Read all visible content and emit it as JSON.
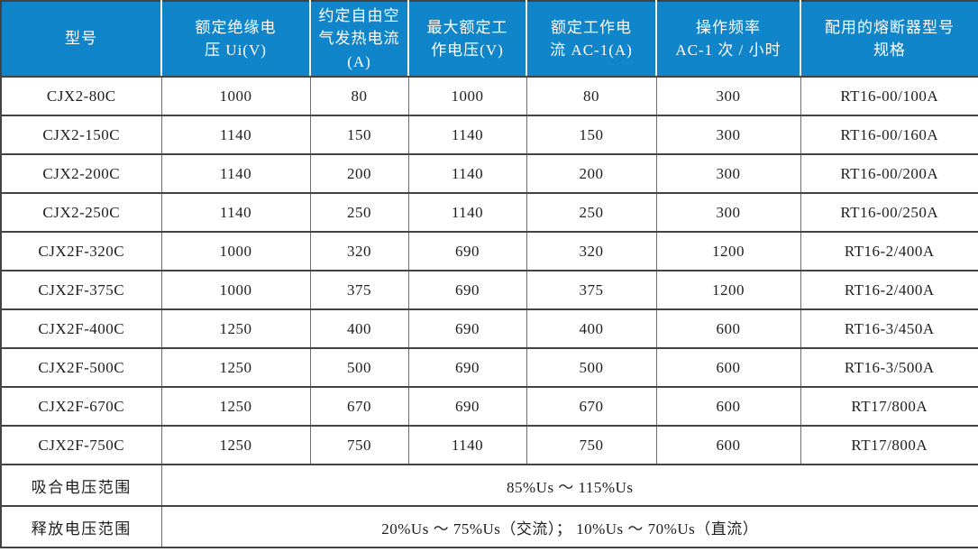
{
  "colors": {
    "header_bg": "#1085C9",
    "header_text": "#FFFFFF",
    "border_dark": "#434343",
    "border_mid": "#6E6E6E",
    "body_text": "#1E1E1E",
    "row_bg": "#FFFFFF"
  },
  "table": {
    "columns": [
      {
        "name": "model",
        "lines": [
          "型号"
        ]
      },
      {
        "name": "rated-insulation-voltage",
        "lines": [
          "额定绝缘电",
          "压 Ui(V)"
        ]
      },
      {
        "name": "free-air-thermal-current",
        "lines": [
          "约定自由空",
          "气发热电流",
          "(A)"
        ]
      },
      {
        "name": "max-rated-working-voltage",
        "lines": [
          "最大额定工",
          "作电压(V)"
        ]
      },
      {
        "name": "rated-working-current-ac1",
        "lines": [
          "额定工作电",
          "流 AC-1(A)"
        ]
      },
      {
        "name": "operating-frequency",
        "lines": [
          "操作频率",
          "AC-1 次 / 小时"
        ]
      },
      {
        "name": "matching-fuse-spec",
        "lines": [
          "配用的熔断器型号",
          "规格"
        ]
      }
    ],
    "rows": [
      [
        "CJX2-80C",
        "1000",
        "80",
        "1000",
        "80",
        "300",
        "RT16-00/100A"
      ],
      [
        "CJX2-150C",
        "1140",
        "150",
        "1140",
        "150",
        "300",
        "RT16-00/160A"
      ],
      [
        "CJX2-200C",
        "1140",
        "200",
        "1140",
        "200",
        "300",
        "RT16-00/200A"
      ],
      [
        "CJX2-250C",
        "1140",
        "250",
        "1140",
        "250",
        "300",
        "RT16-00/250A"
      ],
      [
        "CJX2F-320C",
        "1000",
        "320",
        "690",
        "320",
        "1200",
        "RT16-2/400A"
      ],
      [
        "CJX2F-375C",
        "1000",
        "375",
        "690",
        "375",
        "1200",
        "RT16-2/400A"
      ],
      [
        "CJX2F-400C",
        "1250",
        "400",
        "690",
        "400",
        "600",
        "RT16-3/450A"
      ],
      [
        "CJX2F-500C",
        "1250",
        "500",
        "690",
        "500",
        "600",
        "RT16-3/500A"
      ],
      [
        "CJX2F-670C",
        "1250",
        "670",
        "690",
        "670",
        "600",
        "RT17/800A"
      ],
      [
        "CJX2F-750C",
        "1250",
        "750",
        "1140",
        "750",
        "600",
        "RT17/800A"
      ]
    ],
    "footer_rows": [
      {
        "label": "吸合电压范围",
        "value": "85%Us ～ 115%Us"
      },
      {
        "label": "释放电压范围",
        "value": "20%Us ～ 75%Us（交流）； 10%Us ～ 70%Us（直流）"
      }
    ]
  }
}
